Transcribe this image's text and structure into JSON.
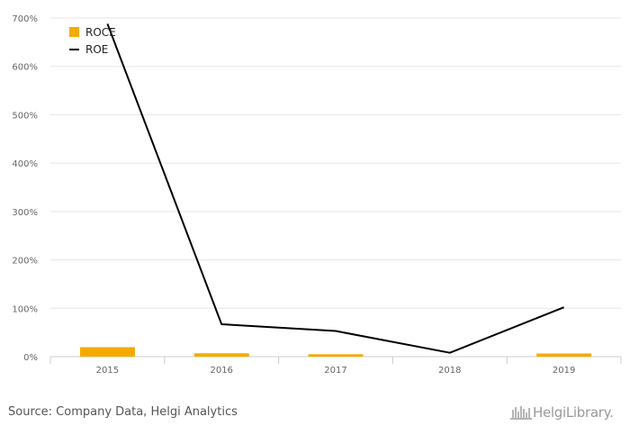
{
  "chart_data": {
    "type": "bar",
    "categories": [
      "2015",
      "2016",
      "2017",
      "2018",
      "2019"
    ],
    "series": [
      {
        "name": "ROCE",
        "kind": "bar",
        "color": "#f5aa00",
        "values": [
          19.5,
          7.0,
          5.0,
          0.0,
          6.5
        ]
      },
      {
        "name": "ROE",
        "kind": "line",
        "color": "#000000",
        "values": [
          688,
          67,
          53,
          8,
          102
        ]
      }
    ],
    "y_ticks": [
      "0%",
      "100%",
      "200%",
      "300%",
      "400%",
      "500%",
      "600%",
      "700%"
    ],
    "ylim": [
      0,
      700
    ],
    "grid": true,
    "legend_position": "top-left"
  },
  "footer": {
    "source": "Source: Company Data, Helgi Analytics",
    "logo_text": "HelgiLibrary."
  }
}
